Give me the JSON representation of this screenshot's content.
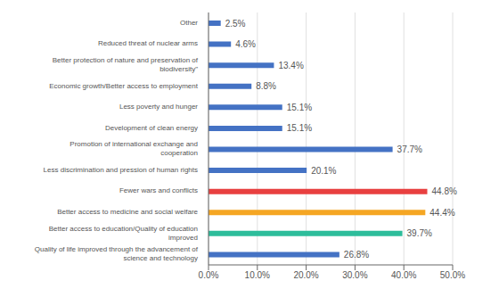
{
  "chart_data": {
    "type": "bar",
    "orientation": "horizontal",
    "categories": [
      "Other",
      "Reduced threat of nuclear arms",
      "Better protection of nature and preservation of\nbiodiversity\"",
      "Economic growth/Better access to employment",
      "Less poverty and hunger",
      "Development of clean energy",
      "Promotion of international exchange and\ncooperation",
      "Less discrimination and pression of human rights",
      "Fewer wars and conflicts",
      "Better access to medicine and social welfare",
      "Better access to education/Quality of education\nimproved",
      "Quality of life improved through the advancement of\nscience and technology"
    ],
    "values": [
      2.5,
      4.6,
      13.4,
      8.8,
      15.1,
      15.1,
      37.7,
      20.1,
      44.8,
      44.4,
      39.7,
      26.8
    ],
    "value_labels": [
      "2.5%",
      "4.6%",
      "13.4%",
      "8.8%",
      "15.1%",
      "15.1%",
      "37.7%",
      "20.1%",
      "44.8%",
      "44.4%",
      "39.7%",
      "26.8%"
    ],
    "data_labels": true,
    "colors": [
      "#4472C4",
      "#4472C4",
      "#4472C4",
      "#4472C4",
      "#4472C4",
      "#4472C4",
      "#4472C4",
      "#4472C4",
      "#E84040",
      "#F5A623",
      "#2DBD9B",
      "#4472C4"
    ],
    "xlim": [
      0,
      50
    ],
    "xticks": [
      {
        "value": 0,
        "label": "0.0%"
      },
      {
        "value": 10,
        "label": "10.0%"
      },
      {
        "value": 20,
        "label": "20.0%"
      },
      {
        "value": 30,
        "label": "30.0%"
      },
      {
        "value": 40,
        "label": "40.0%"
      },
      {
        "value": 50,
        "label": "50.0%"
      }
    ],
    "grid": true
  }
}
